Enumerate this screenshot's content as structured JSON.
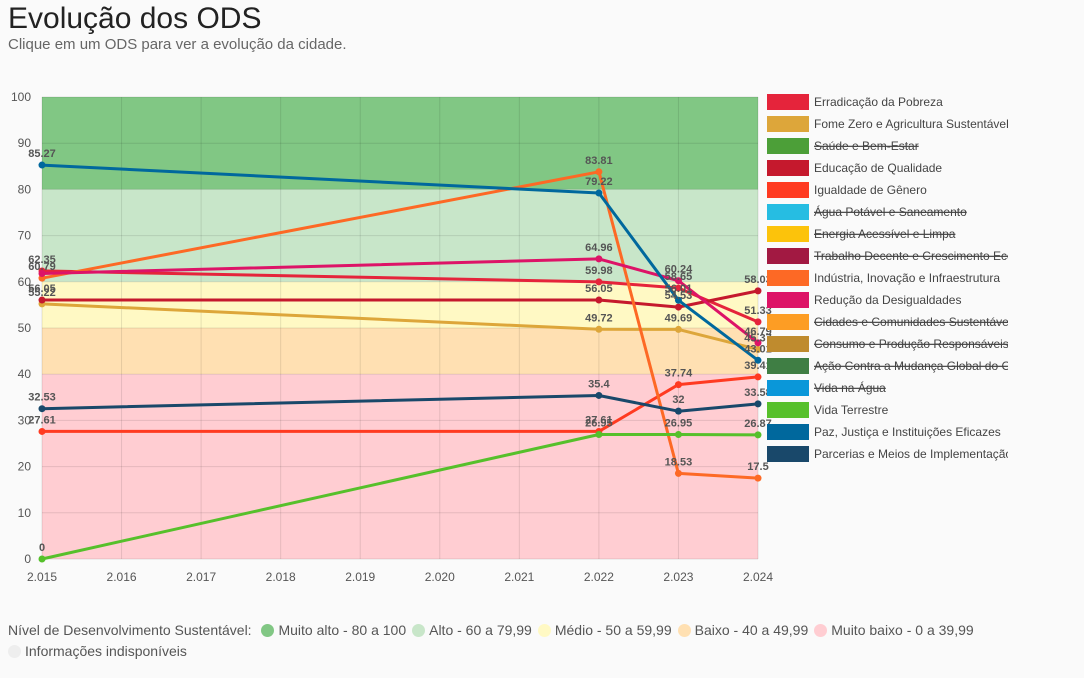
{
  "header": {
    "title": "Evolução dos ODS",
    "subtitle": "Clique em um ODS para ver a evolução da cidade."
  },
  "chart_data": {
    "type": "line",
    "x": [
      "2.015",
      "2.016",
      "2.017",
      "2.018",
      "2.019",
      "2.020",
      "2.021",
      "2.022",
      "2.023",
      "2.024"
    ],
    "xvalues": [
      2015,
      2016,
      2017,
      2018,
      2019,
      2020,
      2021,
      2022,
      2023,
      2024
    ],
    "ylim": [
      0,
      100
    ],
    "yticks": [
      0,
      10,
      20,
      30,
      40,
      50,
      60,
      70,
      80,
      90,
      100
    ],
    "grid": true,
    "legend_position": "right",
    "bands": [
      {
        "from": 80,
        "to": 100,
        "color": "#81c784"
      },
      {
        "from": 60,
        "to": 80,
        "color": "#c8e6c9"
      },
      {
        "from": 50,
        "to": 60,
        "color": "#fff9c4"
      },
      {
        "from": 40,
        "to": 50,
        "color": "#ffe0b2"
      },
      {
        "from": 0,
        "to": 40,
        "color": "#ffcdd2"
      }
    ],
    "series": [
      {
        "name": "Erradicação da Pobreza",
        "color": "#e5243b",
        "hidden": false,
        "points": [
          [
            2015,
            62.35
          ],
          [
            2022,
            59.98
          ],
          [
            2023,
            58.65
          ],
          [
            2024,
            51.33
          ]
        ]
      },
      {
        "name": "Fome Zero e Agricultura Sustentável",
        "color": "#dda63a",
        "hidden": false,
        "points": [
          [
            2015,
            55.22
          ],
          [
            2022,
            49.72
          ],
          [
            2023,
            49.69
          ],
          [
            2024,
            45.37
          ]
        ]
      },
      {
        "name": "Saúde e Bem-Estar",
        "color": "#4c9f38",
        "hidden": true,
        "points": []
      },
      {
        "name": "Educação de Qualidade",
        "color": "#c5192d",
        "hidden": false,
        "points": [
          [
            2015,
            56.05
          ],
          [
            2022,
            56.05
          ],
          [
            2023,
            54.53
          ],
          [
            2024,
            58.03
          ]
        ]
      },
      {
        "name": "Igualdade de Gênero",
        "color": "#ff3a21",
        "hidden": false,
        "points": [
          [
            2015,
            27.61
          ],
          [
            2022,
            27.61
          ],
          [
            2023,
            37.74
          ],
          [
            2024,
            39.41
          ]
        ]
      },
      {
        "name": "Água Potável e Saneamento",
        "color": "#26bde2",
        "hidden": true,
        "points": []
      },
      {
        "name": "Energia Acessível e Limpa",
        "color": "#fcc30b",
        "hidden": true,
        "points": []
      },
      {
        "name": "Trabalho Decente e Crescimento Econômico",
        "color": "#a21942",
        "hidden": true,
        "points": []
      },
      {
        "name": "Indústria, Inovação e Infraestrutura",
        "color": "#fd6925",
        "hidden": false,
        "points": [
          [
            2015,
            60.79
          ],
          [
            2022,
            83.81
          ],
          [
            2023,
            18.53
          ],
          [
            2024,
            17.5
          ]
        ]
      },
      {
        "name": "Redução da Desigualdades",
        "color": "#dd1367",
        "hidden": false,
        "points": [
          [
            2015,
            61.79
          ],
          [
            2022,
            64.96
          ],
          [
            2023,
            60.24
          ],
          [
            2024,
            46.79
          ]
        ]
      },
      {
        "name": "Cidades e Comunidades Sustentáveis",
        "color": "#fd9d24",
        "hidden": true,
        "points": []
      },
      {
        "name": "Consumo e Produção Responsáveis",
        "color": "#bf8b2e",
        "hidden": true,
        "points": []
      },
      {
        "name": "Ação Contra a Mudança Global do Clima",
        "color": "#3f7e44",
        "hidden": true,
        "points": []
      },
      {
        "name": "Vida na Água",
        "color": "#0a97d9",
        "hidden": true,
        "points": []
      },
      {
        "name": "Vida Terrestre",
        "color": "#56c02b",
        "hidden": false,
        "points": [
          [
            2015,
            0
          ],
          [
            2022,
            26.95
          ],
          [
            2023,
            26.95
          ],
          [
            2024,
            26.87
          ]
        ]
      },
      {
        "name": "Paz, Justiça e Instituições Eficazes",
        "color": "#00689d",
        "hidden": false,
        "points": [
          [
            2015,
            85.27
          ],
          [
            2022,
            79.22
          ],
          [
            2023,
            56.01
          ],
          [
            2024,
            43.01
          ]
        ]
      },
      {
        "name": "Parcerias e Meios de Implementação",
        "color": "#19486a",
        "hidden": false,
        "points": [
          [
            2015,
            32.53
          ],
          [
            2022,
            35.4
          ],
          [
            2023,
            32
          ],
          [
            2024,
            33.58
          ]
        ]
      }
    ],
    "data_labels": [
      {
        "x": 2015,
        "y": 85.27,
        "text": "85.27"
      },
      {
        "x": 2015,
        "y": 62.35,
        "text": "62.35"
      },
      {
        "x": 2015,
        "y": 60.79,
        "text": "60.79"
      },
      {
        "x": 2015,
        "y": 56.05,
        "text": "56.05"
      },
      {
        "x": 2015,
        "y": 55.22,
        "text": "55.22"
      },
      {
        "x": 2015,
        "y": 32.53,
        "text": "32.53"
      },
      {
        "x": 2015,
        "y": 27.61,
        "text": "27.61"
      },
      {
        "x": 2015,
        "y": 0,
        "text": "0"
      },
      {
        "x": 2022,
        "y": 83.81,
        "text": "83.81"
      },
      {
        "x": 2022,
        "y": 79.22,
        "text": "79.22"
      },
      {
        "x": 2022,
        "y": 64.96,
        "text": "64.96"
      },
      {
        "x": 2022,
        "y": 59.98,
        "text": "59.98"
      },
      {
        "x": 2022,
        "y": 56.05,
        "text": "56.05"
      },
      {
        "x": 2022,
        "y": 49.72,
        "text": "49.72"
      },
      {
        "x": 2022,
        "y": 35.4,
        "text": "35.4"
      },
      {
        "x": 2022,
        "y": 27.61,
        "text": "27.61"
      },
      {
        "x": 2022,
        "y": 26.95,
        "text": "26.95"
      },
      {
        "x": 2023,
        "y": 60.24,
        "text": "60.24"
      },
      {
        "x": 2023,
        "y": 58.65,
        "text": "58.65"
      },
      {
        "x": 2023,
        "y": 56.01,
        "text": "56.01"
      },
      {
        "x": 2023,
        "y": 54.53,
        "text": "54.53"
      },
      {
        "x": 2023,
        "y": 49.69,
        "text": "49.69"
      },
      {
        "x": 2023,
        "y": 37.74,
        "text": "37.74"
      },
      {
        "x": 2023,
        "y": 32,
        "text": "32"
      },
      {
        "x": 2023,
        "y": 26.95,
        "text": "26.95"
      },
      {
        "x": 2023,
        "y": 18.53,
        "text": "18.53"
      },
      {
        "x": 2024,
        "y": 58.03,
        "text": "58.03"
      },
      {
        "x": 2024,
        "y": 51.33,
        "text": "51.33"
      },
      {
        "x": 2024,
        "y": 46.79,
        "text": "46.79"
      },
      {
        "x": 2024,
        "y": 45.37,
        "text": "45.37"
      },
      {
        "x": 2024,
        "y": 43.01,
        "text": "43.01"
      },
      {
        "x": 2024,
        "y": 39.41,
        "text": "39.41"
      },
      {
        "x": 2024,
        "y": 33.58,
        "text": "33.58"
      },
      {
        "x": 2024,
        "y": 26.87,
        "text": "26.87"
      },
      {
        "x": 2024,
        "y": 17.5,
        "text": "17.5"
      }
    ]
  },
  "bottom_legend": {
    "label": "Nível de Desenvolvimento Sustentável:",
    "items": [
      {
        "text": "Muito alto - 80 a 100",
        "color": "#81c784"
      },
      {
        "text": "Alto - 60 a 79,99",
        "color": "#c8e6c9"
      },
      {
        "text": "Médio - 50 a 59,99",
        "color": "#fff9c4"
      },
      {
        "text": "Baixo - 40 a 49,99",
        "color": "#ffe0b2"
      },
      {
        "text": "Muito baixo - 0 a 39,99",
        "color": "#ffcdd2"
      },
      {
        "text": "Informações indisponíveis",
        "color": "#eeeeee"
      }
    ]
  }
}
